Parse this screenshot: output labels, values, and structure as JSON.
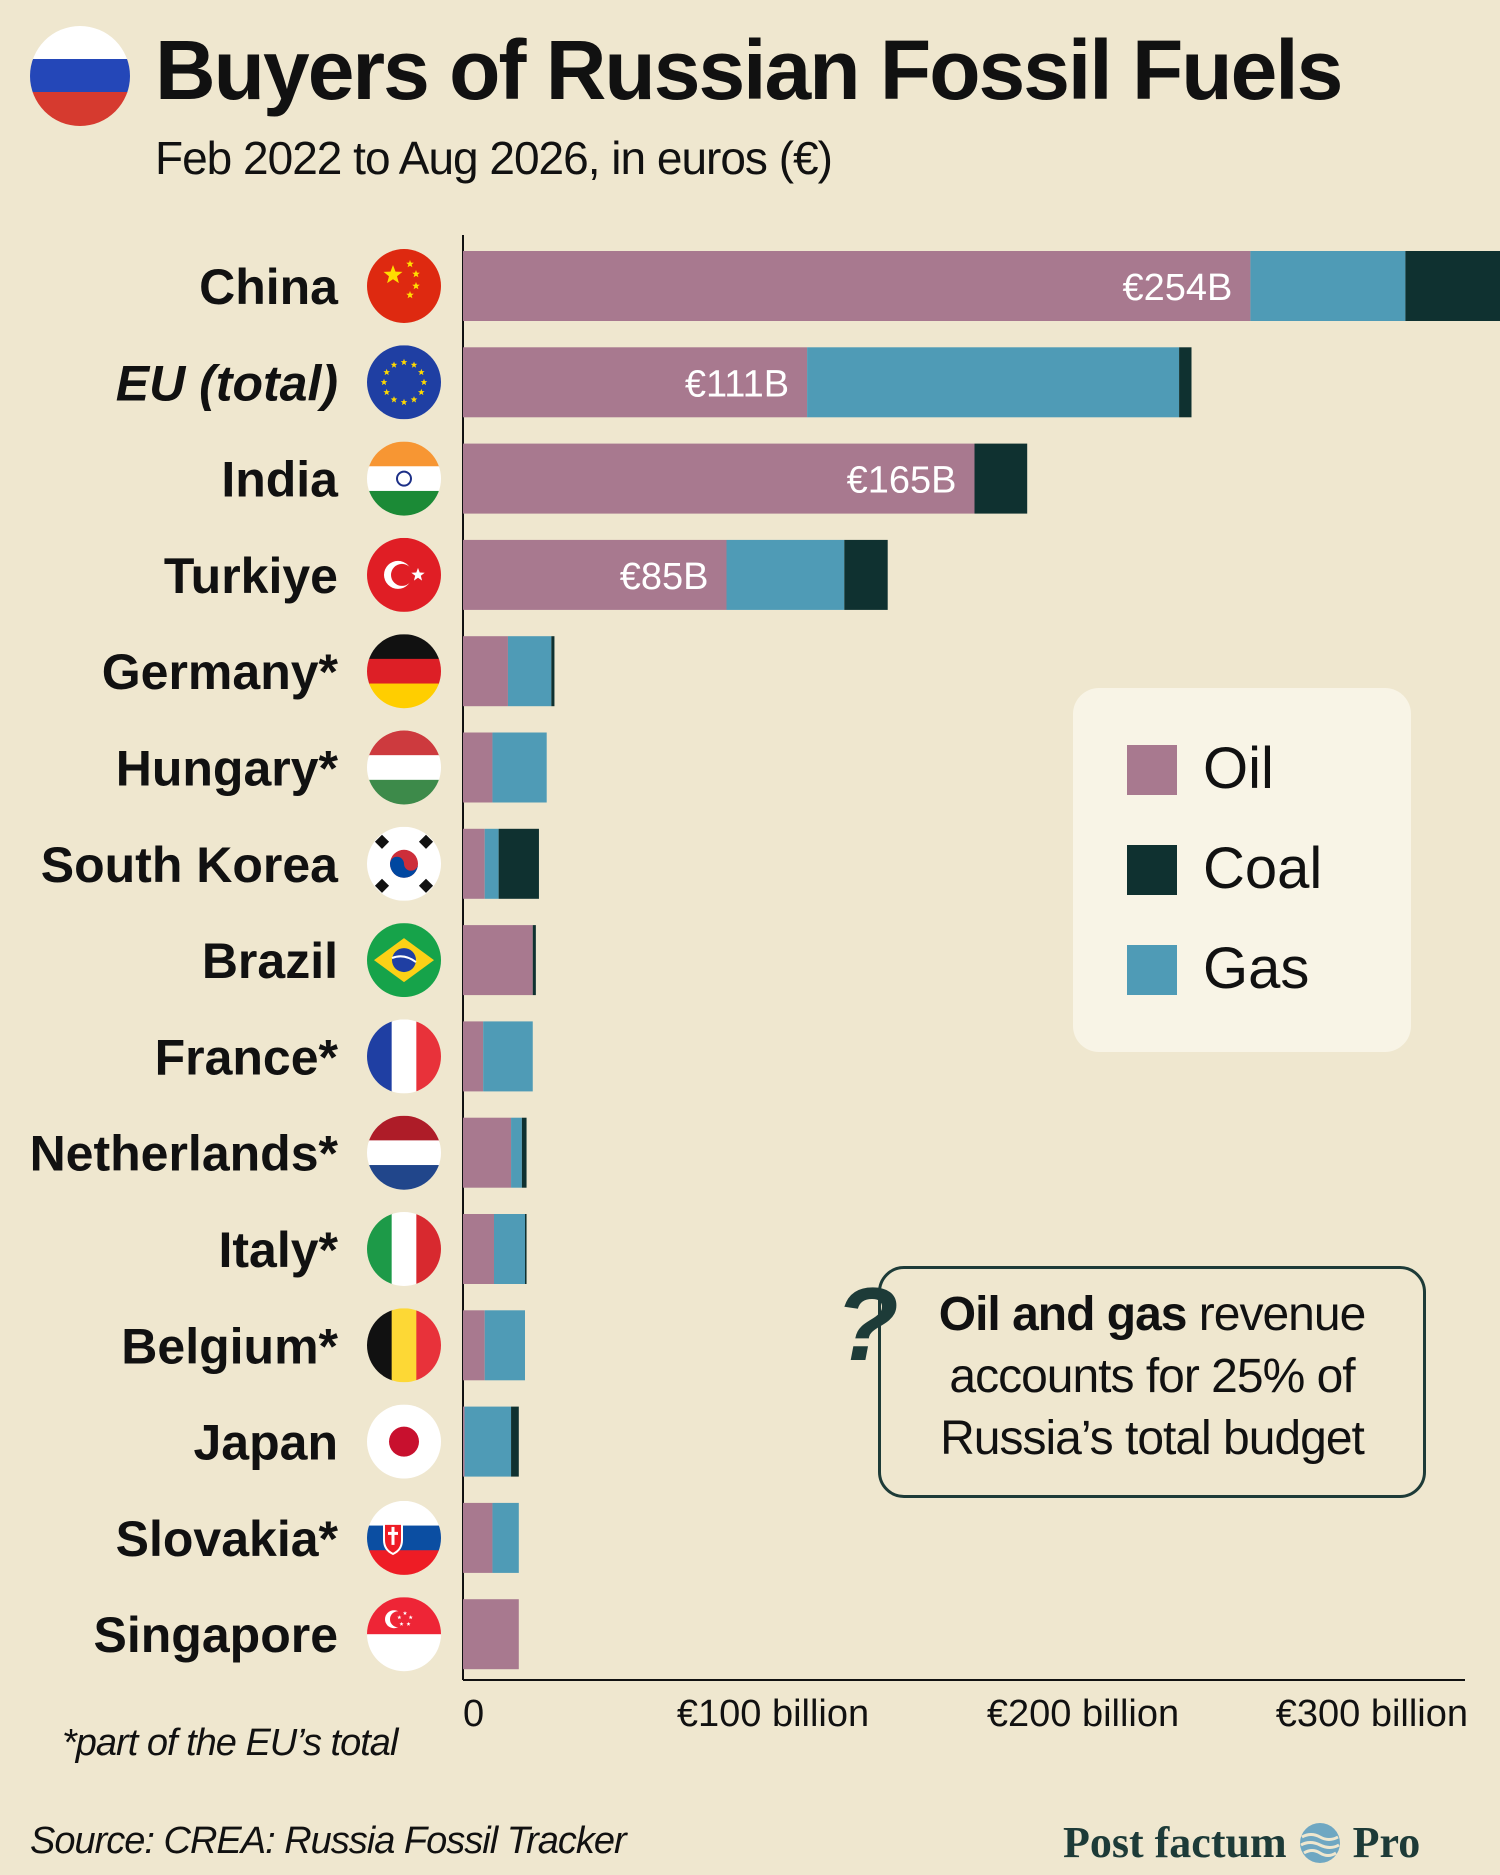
{
  "header": {
    "title": "Buyers of Russian Fossil Fuels",
    "subtitle": "Feb 2022 to Aug 2026, in euros (€)"
  },
  "colors": {
    "background": "#efe7cf",
    "oil": "#a8798f",
    "coal": "#0f3130",
    "gas": "#4f9bb6",
    "text": "#111111"
  },
  "legend": {
    "items": [
      {
        "label": "Oil",
        "color": "#a8798f"
      },
      {
        "label": "Coal",
        "color": "#0f3130"
      },
      {
        "label": "Gas",
        "color": "#4f9bb6"
      }
    ]
  },
  "callout": {
    "bold": "Oil and gas",
    "text": " revenue accounts for 25% of Russia’s total budget"
  },
  "footnote": "*part of the EU’s total",
  "source": "Source: CREA: Russia Fossil Tracker",
  "brand": {
    "left": "Post factum",
    "right": "Pro"
  },
  "chart_data": {
    "type": "bar",
    "orientation": "horizontal",
    "stacked": true,
    "title": "Buyers of Russian Fossil Fuels",
    "subtitle": "Feb 2022 to Aug 2026, in euros (€)",
    "units": "billion €",
    "xlim": [
      0,
      320
    ],
    "xticks": [
      {
        "value": 0,
        "label": "0"
      },
      {
        "value": 100,
        "label": "€100 billion"
      },
      {
        "value": 200,
        "label": "€200 billion"
      },
      {
        "value": 300,
        "label": "€300 billion"
      }
    ],
    "legend_position": "right",
    "categories": [
      {
        "label": "China",
        "italic": false,
        "flag": "china-flag-icon",
        "bar_label": "€254B"
      },
      {
        "label": "EU (total)",
        "italic": true,
        "flag": "eu-flag-icon",
        "bar_label": "€111B"
      },
      {
        "label": "India",
        "italic": false,
        "flag": "india-flag-icon",
        "bar_label": "€165B"
      },
      {
        "label": "Turkiye",
        "italic": false,
        "flag": "turkey-flag-icon",
        "bar_label": "€85B"
      },
      {
        "label": "Germany*",
        "italic": false,
        "flag": "germany-flag-icon",
        "bar_label": ""
      },
      {
        "label": "Hungary*",
        "italic": false,
        "flag": "hungary-flag-icon",
        "bar_label": ""
      },
      {
        "label": "South Korea",
        "italic": false,
        "flag": "south-korea-flag-icon",
        "bar_label": ""
      },
      {
        "label": "Brazil",
        "italic": false,
        "flag": "brazil-flag-icon",
        "bar_label": ""
      },
      {
        "label": "France*",
        "italic": false,
        "flag": "france-flag-icon",
        "bar_label": ""
      },
      {
        "label": "Netherlands*",
        "italic": false,
        "flag": "netherlands-flag-icon",
        "bar_label": ""
      },
      {
        "label": "Italy*",
        "italic": false,
        "flag": "italy-flag-icon",
        "bar_label": ""
      },
      {
        "label": "Belgium*",
        "italic": false,
        "flag": "belgium-flag-icon",
        "bar_label": ""
      },
      {
        "label": "Japan",
        "italic": false,
        "flag": "japan-flag-icon",
        "bar_label": ""
      },
      {
        "label": "Slovakia*",
        "italic": false,
        "flag": "slovakia-flag-icon",
        "bar_label": ""
      },
      {
        "label": "Singapore",
        "italic": false,
        "flag": "singapore-flag-icon",
        "bar_label": ""
      }
    ],
    "series": [
      {
        "name": "Oil",
        "color": "#a8798f",
        "values": [
          254,
          111,
          165,
          85,
          14.5,
          9.5,
          7,
          22.5,
          6.5,
          15.5,
          10,
          7,
          0.5,
          9.5,
          18
        ]
      },
      {
        "name": "Gas",
        "color": "#4f9bb6",
        "values": [
          50,
          120,
          0,
          38,
          14,
          17.5,
          4.5,
          0,
          16,
          3.5,
          10,
          13,
          15,
          8.5,
          0
        ]
      },
      {
        "name": "Coal",
        "color": "#0f3130",
        "values": [
          35,
          4,
          17,
          14,
          1,
          0,
          13,
          1,
          0,
          1.5,
          0.5,
          0,
          2.5,
          0,
          0
        ]
      }
    ]
  }
}
